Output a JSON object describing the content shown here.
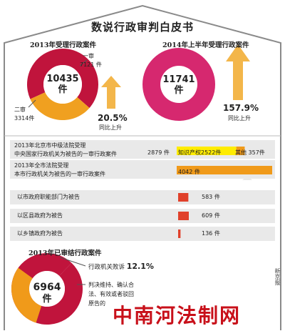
{
  "title": "数说行政审判白皮书",
  "sections": {
    "pie2013_title": "2013年受理行政案件",
    "pie2014_title": "2014年上半年受理行政案件",
    "judged_title": "2013年已审结行政案件"
  },
  "colors": {
    "crimson": "#c0143c",
    "orange": "#f0a020",
    "magenta": "#d6286f",
    "arrow": "#f3b64a",
    "bar_red": "#e0402a",
    "bar_yellow": "#ffec00",
    "bar_orange": "#f09a1a",
    "band_bg": "#e9e9e9",
    "frame": "#8a8a8a",
    "watermark": "#c8101a"
  },
  "chart_data": [
    {
      "type": "pie",
      "title": "2013年受理行政案件",
      "center_value": "10435",
      "center_unit": "件",
      "slices": [
        {
          "label": "一审",
          "value": 7121,
          "value_text": "7121 件"
        },
        {
          "label": "二审",
          "value": 3314,
          "value_text": "3314件"
        }
      ],
      "growth": {
        "value": "20.5%",
        "note": "同比上升"
      }
    },
    {
      "type": "pie",
      "title": "2014年上半年受理行政案件",
      "center_value": "11741",
      "center_unit": "件",
      "slices": [
        {
          "label": "",
          "value": 11741
        }
      ],
      "growth": {
        "value": "157.9%",
        "note": "同比上升"
      }
    },
    {
      "type": "bar",
      "rows": [
        {
          "label_lines": [
            "2013年北京市中级法院受理",
            "中央国家行政机关为被告的一审行政案件"
          ],
          "total_text": "2879 件",
          "total": 2879,
          "segments": [
            {
              "text": "知识产权2522件",
              "value": 2522
            },
            {
              "text": "其他 357件",
              "value": 357
            }
          ]
        },
        {
          "label_lines": [
            "2013年全市法院受理",
            "本市行政机关为被告的一审行政案件"
          ],
          "value": 4042,
          "value_text": "4042 件"
        },
        {
          "label": "以市政府职能部门为被告",
          "value": 583,
          "value_text": "583 件"
        },
        {
          "label": "以区县政府为被告",
          "value": 609,
          "value_text": "609 件"
        },
        {
          "label": "以乡镇政府为被告",
          "value": 136,
          "value_text": "136 件"
        }
      ]
    },
    {
      "type": "pie",
      "title": "2013年已审结行政案件",
      "center_value": "6964",
      "center_unit": "件",
      "annotations": [
        {
          "text_parts": [
            "行政机关败诉 ",
            "12.1%"
          ]
        },
        {
          "lines": [
            "判决维持、确认合",
            "法、有效或者驳回",
            "原告的"
          ]
        }
      ]
    }
  ],
  "side_text": "新京报",
  "watermark": "中南河法制网"
}
